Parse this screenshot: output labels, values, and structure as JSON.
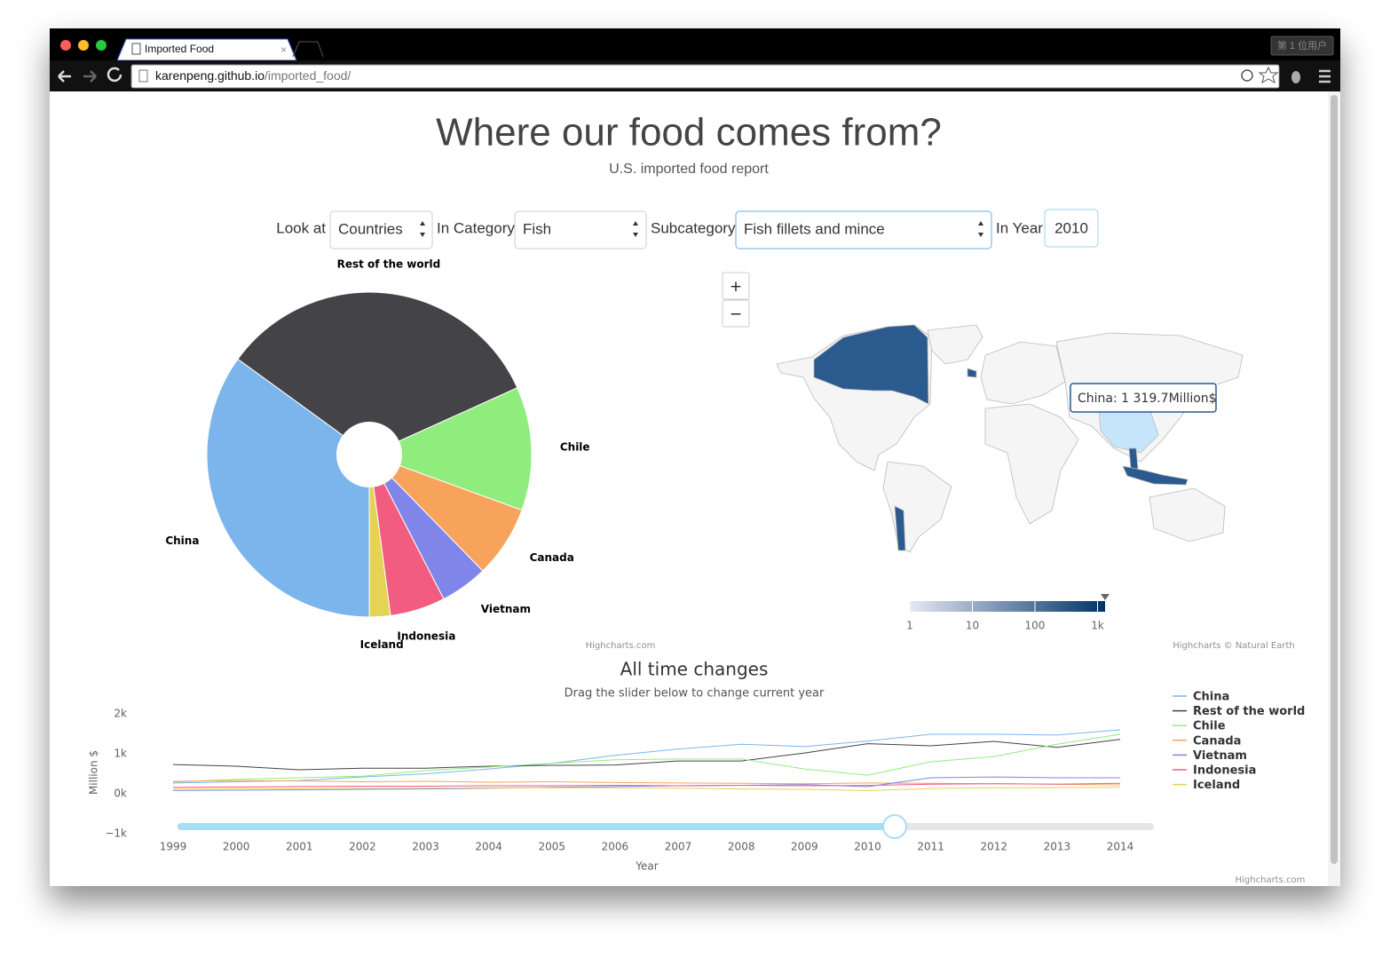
{
  "browser": {
    "tab_title": "Imported Food",
    "url_host": "karenpeng.github.io",
    "url_path": "/imported_food/",
    "user_button": "第 1 位用户"
  },
  "header": {
    "title": "Where our food comes from?",
    "subtitle": "U.S. imported food report"
  },
  "controls": {
    "look_at_label": "Look at",
    "look_at": "Countries",
    "category_label": "In Category",
    "category": "Fish",
    "subcategory_label": "Subcategory",
    "subcategory": "Fish fillets and mince",
    "year_label": "In Year",
    "year": "2010"
  },
  "map_controls": {
    "zoom_in": "+",
    "zoom_out": "−"
  },
  "chart_data": [
    {
      "type": "pie",
      "categories": [
        "China",
        "Rest of the world",
        "Chile",
        "Canada",
        "Vietnam",
        "Indonesia",
        "Iceland"
      ],
      "values": [
        1319.7,
        1254,
        464,
        269,
        178,
        207,
        79
      ],
      "colors": [
        "#7cb5ec",
        "#434348",
        "#90ed7d",
        "#f7a35c",
        "#8085e9",
        "#f15c80",
        "#e4d354"
      ],
      "credit": "Highcharts.com"
    },
    {
      "type": "map",
      "tooltip": "China: 1 319.7Million$",
      "hover_value": 1319.7,
      "clim": [
        1,
        1320
      ],
      "cticks": [
        1,
        10,
        100,
        {
          "value": 1000,
          "label": "1k"
        }
      ],
      "log": true,
      "colors": [
        "#e6e7f5",
        "#003366"
      ],
      "credit": "Highcharts © Natural Earth"
    },
    {
      "type": "line",
      "title": "All time changes",
      "subtitle": "Drag the slider below to change current year",
      "x_label": "Year",
      "y_label": "Million $",
      "x": [
        1999,
        2000,
        2001,
        2002,
        2003,
        2004,
        2005,
        2006,
        2007,
        2008,
        2009,
        2010,
        2011,
        2012,
        2013,
        2014
      ],
      "xlim": [
        1999,
        2014
      ],
      "xticks": [
        1999,
        2000,
        2001,
        2002,
        2003,
        2004,
        2005,
        2006,
        2007,
        2008,
        2009,
        2010,
        2011,
        2012,
        2013,
        2014
      ],
      "ylim": [
        -1000,
        2000
      ],
      "yticks": [
        {
          "value": -1000,
          "label": "−1k"
        },
        {
          "value": 0,
          "label": "0k"
        },
        {
          "value": 1000,
          "label": "1k"
        },
        {
          "value": 2000,
          "label": "2k"
        }
      ],
      "grid": false,
      "series": [
        {
          "name": "China",
          "color": "#7cb5ec",
          "values": [
            270,
            300,
            330,
            420,
            500,
            620,
            760,
            960,
            1120,
            1240,
            1180,
            1319.7,
            1490,
            1490,
            1470,
            1600
          ]
        },
        {
          "name": "Rest of the world",
          "color": "#434348",
          "values": [
            730,
            690,
            600,
            640,
            640,
            690,
            710,
            720,
            820,
            820,
            1020,
            1254,
            1200,
            1310,
            1160,
            1360
          ]
        },
        {
          "name": "Chile",
          "color": "#90ed7d",
          "values": [
            290,
            360,
            400,
            440,
            580,
            670,
            760,
            850,
            870,
            870,
            620,
            464,
            800,
            930,
            1240,
            1490
          ]
        },
        {
          "name": "Canada",
          "color": "#f7a35c",
          "values": [
            310,
            330,
            320,
            300,
            310,
            290,
            300,
            280,
            270,
            260,
            250,
            269,
            260,
            250,
            240,
            220
          ]
        },
        {
          "name": "Vietnam",
          "color": "#8085e9",
          "values": [
            80,
            90,
            100,
            110,
            120,
            140,
            160,
            180,
            200,
            210,
            230,
            178,
            400,
            420,
            400,
            400
          ]
        },
        {
          "name": "Indonesia",
          "color": "#f15c80",
          "values": [
            160,
            170,
            180,
            190,
            190,
            200,
            200,
            210,
            200,
            210,
            200,
            207,
            240,
            250,
            240,
            260
          ]
        },
        {
          "name": "Iceland",
          "color": "#e4d354",
          "values": [
            120,
            130,
            130,
            140,
            140,
            150,
            150,
            150,
            140,
            120,
            110,
            79,
            130,
            150,
            150,
            160
          ]
        }
      ],
      "credit": "Highcharts.com"
    }
  ]
}
